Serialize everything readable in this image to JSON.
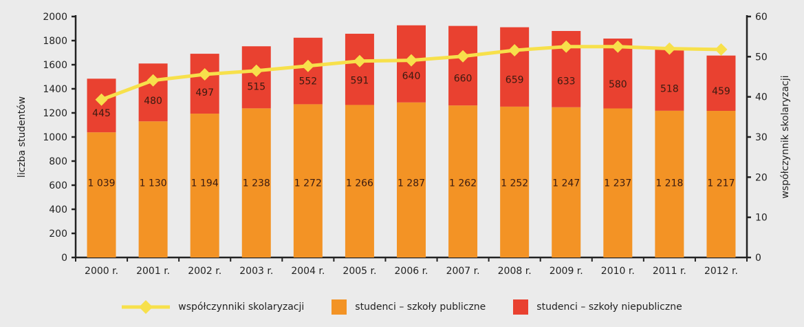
{
  "chart_data": {
    "type": "bar",
    "stacked": true,
    "categories": [
      "2000 r.",
      "2001 r.",
      "2002 r.",
      "2003 r.",
      "2004 r.",
      "2005 r.",
      "2006 r.",
      "2007 r.",
      "2008 r.",
      "2009 r.",
      "2010 r.",
      "2011 r.",
      "2012 r."
    ],
    "ylabel": "liczba studentów",
    "ylabel_right": "współczynnik skolaryzacji",
    "ylim": [
      0,
      2000
    ],
    "yticks": [
      0,
      200,
      400,
      600,
      800,
      1000,
      1200,
      1400,
      1600,
      1800,
      2000
    ],
    "ylim_right": [
      0,
      60
    ],
    "yticks_right": [
      0,
      10,
      20,
      30,
      40,
      50,
      60
    ],
    "grid": false,
    "legend_position": "bottom",
    "series": [
      {
        "name": "studenci – szkoły publiczne",
        "type": "bar",
        "color": "#f39325",
        "values": [
          1039,
          1130,
          1194,
          1238,
          1272,
          1266,
          1287,
          1262,
          1252,
          1247,
          1237,
          1218,
          1217
        ],
        "labels": [
          "1 039",
          "1 130",
          "1 194",
          "1 238",
          "1 272",
          "1 266",
          "1 287",
          "1 262",
          "1 252",
          "1 247",
          "1 237",
          "1 218",
          "1 217"
        ]
      },
      {
        "name": "studenci – szkoły niepubliczne",
        "type": "bar",
        "color": "#e94130",
        "values": [
          445,
          480,
          497,
          515,
          552,
          591,
          640,
          660,
          659,
          633,
          580,
          518,
          459
        ],
        "labels": [
          "445",
          "480",
          "497",
          "515",
          "552",
          "591",
          "640",
          "660",
          "659",
          "633",
          "580",
          "518",
          "459"
        ]
      },
      {
        "name": "współczynniki skolaryzacji",
        "type": "line",
        "axis": "right",
        "color": "#f7e04b",
        "values": [
          39.3,
          44.1,
          45.6,
          46.5,
          47.7,
          48.9,
          49.1,
          50.1,
          51.6,
          52.5,
          52.5,
          52.0,
          51.8
        ]
      }
    ]
  }
}
